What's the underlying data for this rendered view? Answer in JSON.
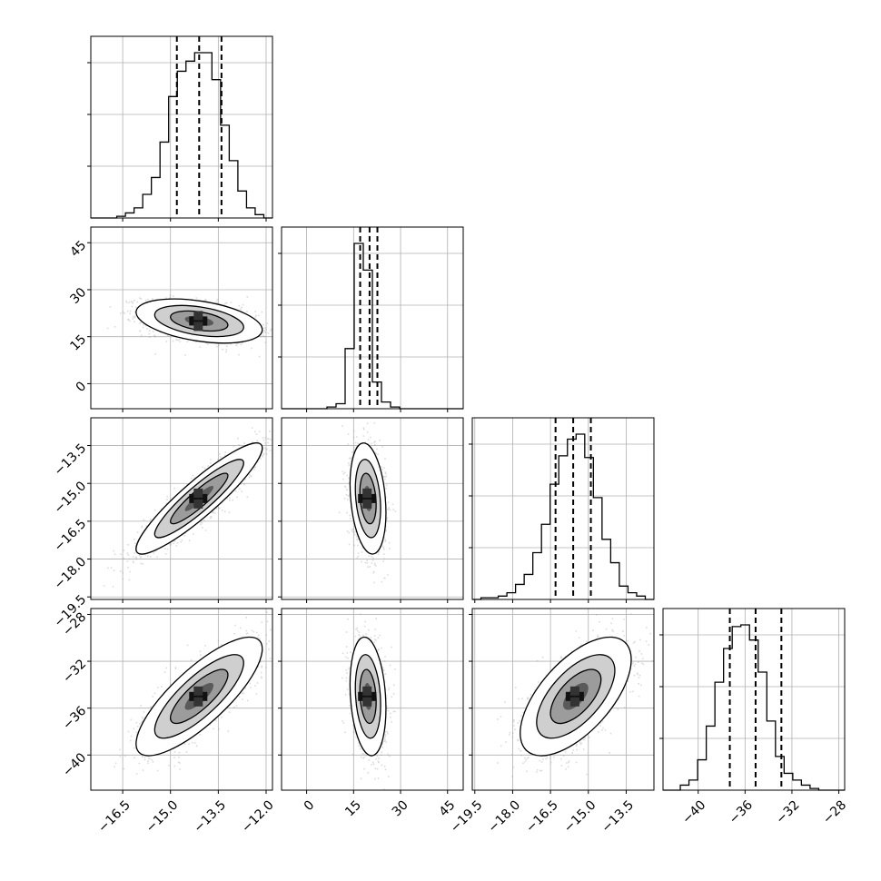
{
  "chart_data": {
    "type": "corner",
    "grid": true,
    "colors": {
      "hist": "#000000",
      "quantile": "#000000",
      "grid": "#b0b0b0",
      "points": "#9a9a9a"
    },
    "params": [
      {
        "range": [
          -17.5,
          -11.8
        ],
        "ticks": [
          -16.5,
          -15.0,
          -13.5,
          -12.0
        ],
        "tick_labels": [
          "−16.5",
          "−15.0",
          "−13.5",
          "−12.0"
        ],
        "quantiles": [
          -14.8,
          -14.1,
          -13.4
        ],
        "hist": [
          0,
          0,
          0,
          1,
          3,
          6,
          14,
          24,
          45,
          72,
          87,
          93,
          98,
          98,
          82,
          55,
          34,
          16,
          6,
          2,
          0
        ]
      },
      {
        "range": [
          -8,
          50
        ],
        "ticks": [
          0,
          15,
          30,
          45
        ],
        "tick_labels": [
          "0",
          "15",
          "30",
          "45"
        ],
        "quantiles": [
          17.1,
          20.1,
          22.6
        ],
        "hist": [
          0,
          0,
          0,
          0,
          0,
          1,
          3,
          36,
          99,
          83,
          16,
          4,
          1,
          0,
          0,
          0,
          0,
          0,
          0,
          0
        ]
      },
      {
        "range": [
          -19.6,
          -12.4
        ],
        "ticks": [
          -19.5,
          -18.0,
          -16.5,
          -15.0,
          -13.5
        ],
        "tick_labels": [
          "−19.5",
          "−18.0",
          "−16.5",
          "−15.0",
          "−13.5"
        ],
        "quantiles": [
          -16.3,
          -15.6,
          -14.9
        ],
        "hist": [
          0,
          1,
          1,
          2,
          4,
          9,
          15,
          28,
          45,
          69,
          86,
          96,
          99,
          85,
          61,
          36,
          22,
          8,
          4,
          2,
          0
        ]
      },
      {
        "range": [
          -43,
          -27.5
        ],
        "ticks": [
          -40,
          -36,
          -32,
          -28
        ],
        "tick_labels": [
          "−40",
          "−36",
          "−32",
          "−28"
        ],
        "quantiles": [
          -37.3,
          -35.1,
          -32.9
        ],
        "hist": [
          0,
          0,
          3,
          6,
          18,
          38,
          64,
          84,
          97,
          98,
          89,
          70,
          41,
          20,
          10,
          6,
          3,
          1,
          0,
          0,
          0
        ]
      }
    ],
    "pairs": [
      {
        "row": 1,
        "col": 0,
        "center": [
          -14.1,
          20.0
        ],
        "sigma": [
          0.9,
          3.2
        ],
        "rho": -0.4
      },
      {
        "row": 2,
        "col": 0,
        "center": [
          -14.1,
          -15.6
        ],
        "sigma": [
          0.9,
          1.0
        ],
        "rho": 0.91
      },
      {
        "row": 2,
        "col": 1,
        "center": [
          19.6,
          -15.6
        ],
        "sigma": [
          2.6,
          1.0
        ],
        "rho": -0.25
      },
      {
        "row": 3,
        "col": 0,
        "center": [
          -14.1,
          -35.0
        ],
        "sigma": [
          0.9,
          2.3
        ],
        "rho": 0.8
      },
      {
        "row": 3,
        "col": 1,
        "center": [
          19.6,
          -35.0
        ],
        "sigma": [
          2.6,
          2.3
        ],
        "rho": -0.2
      },
      {
        "row": 3,
        "col": 2,
        "center": [
          -15.5,
          -35.0
        ],
        "sigma": [
          1.0,
          2.3
        ],
        "rho": 0.62
      }
    ]
  }
}
